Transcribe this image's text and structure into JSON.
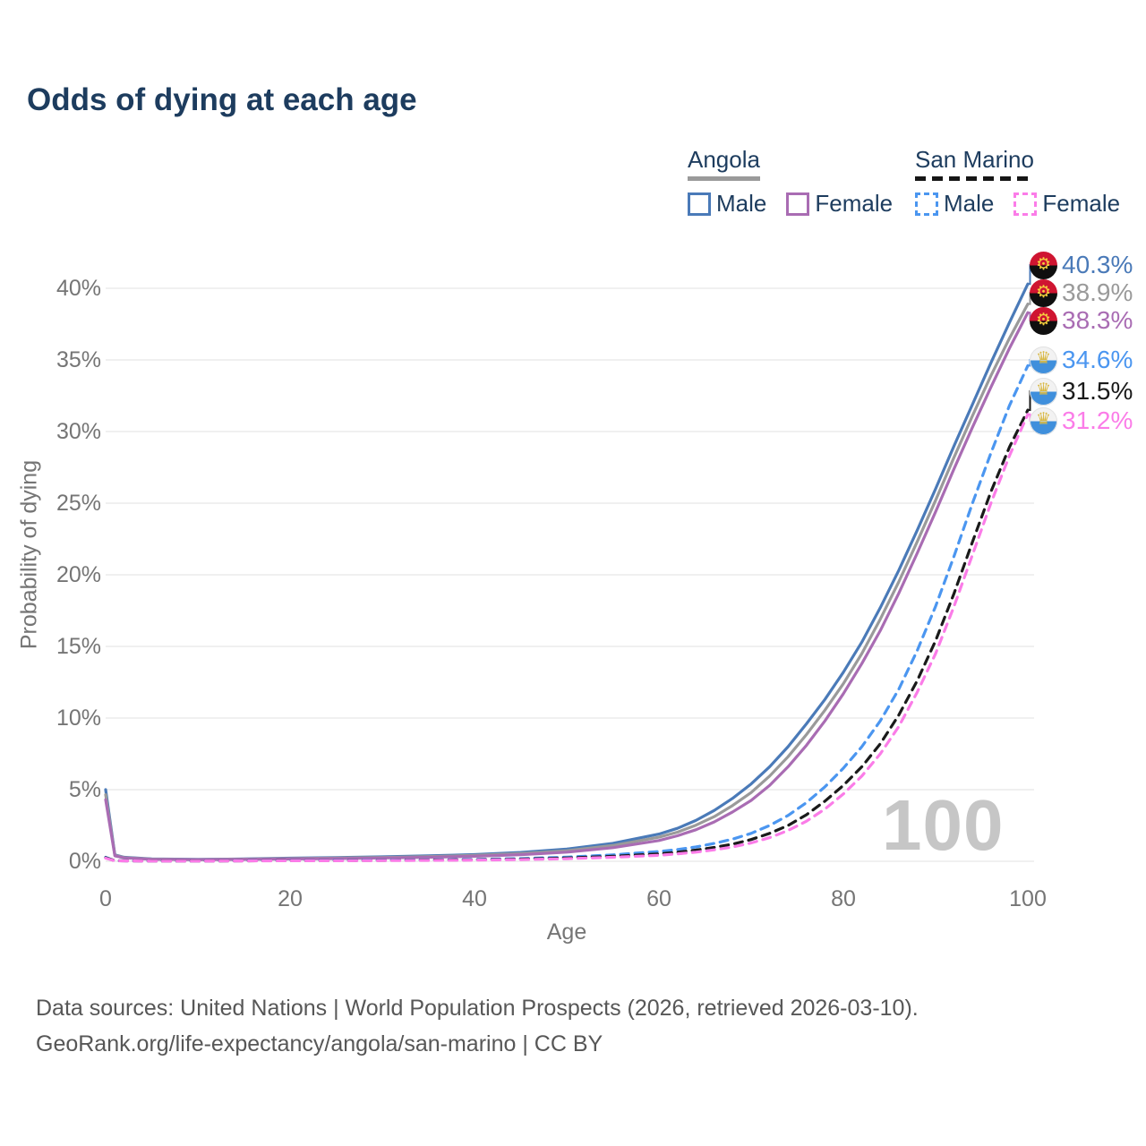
{
  "title": "Odds of dying at each age",
  "watermark": "100",
  "icons": {
    "angola_flag_emblem": "⚙",
    "san_marino_flag_emblem": "♛"
  },
  "legend": {
    "groups": [
      {
        "label": "Angola",
        "line_style": "solid",
        "items": [
          {
            "label": "Male",
            "color": "#4a7ab8"
          },
          {
            "label": "Female",
            "color": "#a96cb3"
          }
        ]
      },
      {
        "label": "San Marino",
        "line_style": "dashed",
        "items": [
          {
            "label": "Male",
            "color": "#4b96f0"
          },
          {
            "label": "Female",
            "color": "#fb7ce8"
          }
        ]
      }
    ]
  },
  "footer": {
    "line1": "Data sources: United Nations | World Population Prospects (2026, retrieved 2026-03-10).",
    "line2": "GeoRank.org/life-expectancy/angola/san-marino | CC BY"
  },
  "chart_data": {
    "type": "line",
    "title": "Odds of dying at each age",
    "xlabel": "Age",
    "ylabel": "Probability of dying",
    "xlim": [
      0,
      100
    ],
    "ylim": [
      0,
      42
    ],
    "grid": "horizontal",
    "legend_position": "top-right",
    "x_ticks": [
      0,
      20,
      40,
      60,
      80,
      100
    ],
    "y_ticks": [
      "0%",
      "5%",
      "10%",
      "15%",
      "20%",
      "25%",
      "30%",
      "35%",
      "40%"
    ],
    "y_tick_values": [
      0,
      5,
      10,
      15,
      20,
      25,
      30,
      35,
      40
    ],
    "series": [
      {
        "name": "Angola Male",
        "country": "Angola",
        "sex": "male",
        "color": "#4a7ab8",
        "dash": "solid",
        "end_label": "40.3%",
        "end_value": 40.3,
        "points": [
          [
            0,
            5.0
          ],
          [
            1,
            0.45
          ],
          [
            2,
            0.28
          ],
          [
            5,
            0.16
          ],
          [
            10,
            0.13
          ],
          [
            15,
            0.16
          ],
          [
            20,
            0.22
          ],
          [
            25,
            0.26
          ],
          [
            30,
            0.31
          ],
          [
            35,
            0.38
          ],
          [
            40,
            0.47
          ],
          [
            45,
            0.62
          ],
          [
            50,
            0.85
          ],
          [
            55,
            1.25
          ],
          [
            60,
            1.9
          ],
          [
            62,
            2.3
          ],
          [
            64,
            2.85
          ],
          [
            66,
            3.55
          ],
          [
            68,
            4.4
          ],
          [
            70,
            5.4
          ],
          [
            72,
            6.6
          ],
          [
            74,
            8.0
          ],
          [
            76,
            9.6
          ],
          [
            78,
            11.3
          ],
          [
            80,
            13.2
          ],
          [
            82,
            15.3
          ],
          [
            84,
            17.7
          ],
          [
            86,
            20.3
          ],
          [
            88,
            23.1
          ],
          [
            90,
            26.0
          ],
          [
            92,
            29.0
          ],
          [
            94,
            31.9
          ],
          [
            96,
            34.8
          ],
          [
            98,
            37.6
          ],
          [
            100,
            40.3
          ]
        ]
      },
      {
        "name": "Angola All",
        "country": "Angola",
        "sex": "all",
        "color": "#9a9a9a",
        "dash": "solid",
        "end_label": "38.9%",
        "end_value": 38.9,
        "points": [
          [
            0,
            4.65
          ],
          [
            1,
            0.42
          ],
          [
            2,
            0.26
          ],
          [
            5,
            0.15
          ],
          [
            10,
            0.12
          ],
          [
            15,
            0.15
          ],
          [
            20,
            0.19
          ],
          [
            25,
            0.23
          ],
          [
            30,
            0.27
          ],
          [
            35,
            0.33
          ],
          [
            40,
            0.41
          ],
          [
            45,
            0.54
          ],
          [
            50,
            0.74
          ],
          [
            55,
            1.1
          ],
          [
            60,
            1.68
          ],
          [
            62,
            2.03
          ],
          [
            64,
            2.52
          ],
          [
            66,
            3.12
          ],
          [
            68,
            3.9
          ],
          [
            70,
            4.8
          ],
          [
            72,
            5.95
          ],
          [
            74,
            7.3
          ],
          [
            76,
            8.85
          ],
          [
            78,
            10.55
          ],
          [
            80,
            12.4
          ],
          [
            82,
            14.5
          ],
          [
            84,
            16.9
          ],
          [
            86,
            19.5
          ],
          [
            88,
            22.3
          ],
          [
            90,
            25.2
          ],
          [
            92,
            28.2
          ],
          [
            94,
            31.1
          ],
          [
            96,
            33.9
          ],
          [
            98,
            36.5
          ],
          [
            100,
            38.9
          ]
        ]
      },
      {
        "name": "Angola Female",
        "country": "Angola",
        "sex": "female",
        "color": "#a96cb3",
        "dash": "solid",
        "end_label": "38.3%",
        "end_value": 38.3,
        "points": [
          [
            0,
            4.3
          ],
          [
            1,
            0.38
          ],
          [
            2,
            0.24
          ],
          [
            5,
            0.14
          ],
          [
            10,
            0.11
          ],
          [
            15,
            0.13
          ],
          [
            20,
            0.16
          ],
          [
            25,
            0.19
          ],
          [
            30,
            0.23
          ],
          [
            35,
            0.28
          ],
          [
            40,
            0.35
          ],
          [
            45,
            0.46
          ],
          [
            50,
            0.64
          ],
          [
            55,
            0.95
          ],
          [
            60,
            1.45
          ],
          [
            62,
            1.78
          ],
          [
            64,
            2.2
          ],
          [
            66,
            2.75
          ],
          [
            68,
            3.45
          ],
          [
            70,
            4.25
          ],
          [
            72,
            5.3
          ],
          [
            74,
            6.6
          ],
          [
            76,
            8.1
          ],
          [
            78,
            9.8
          ],
          [
            80,
            11.7
          ],
          [
            82,
            13.8
          ],
          [
            84,
            16.1
          ],
          [
            86,
            18.7
          ],
          [
            88,
            21.5
          ],
          [
            90,
            24.4
          ],
          [
            92,
            27.4
          ],
          [
            94,
            30.3
          ],
          [
            96,
            33.1
          ],
          [
            98,
            35.8
          ],
          [
            100,
            38.3
          ]
        ]
      },
      {
        "name": "San Marino Male",
        "country": "San Marino",
        "sex": "male",
        "color": "#4b96f0",
        "dash": "dashed",
        "end_label": "34.6%",
        "end_value": 34.6,
        "points": [
          [
            0,
            0.28
          ],
          [
            1,
            0.04
          ],
          [
            5,
            0.02
          ],
          [
            10,
            0.02
          ],
          [
            15,
            0.04
          ],
          [
            20,
            0.06
          ],
          [
            25,
            0.07
          ],
          [
            30,
            0.08
          ],
          [
            35,
            0.1
          ],
          [
            40,
            0.13
          ],
          [
            45,
            0.19
          ],
          [
            50,
            0.29
          ],
          [
            55,
            0.45
          ],
          [
            60,
            0.68
          ],
          [
            62,
            0.82
          ],
          [
            64,
            1.0
          ],
          [
            66,
            1.25
          ],
          [
            68,
            1.55
          ],
          [
            70,
            1.95
          ],
          [
            72,
            2.5
          ],
          [
            74,
            3.2
          ],
          [
            76,
            4.1
          ],
          [
            78,
            5.2
          ],
          [
            80,
            6.5
          ],
          [
            82,
            8.0
          ],
          [
            84,
            9.8
          ],
          [
            86,
            12.0
          ],
          [
            88,
            14.7
          ],
          [
            90,
            17.8
          ],
          [
            92,
            21.3
          ],
          [
            94,
            25.0
          ],
          [
            96,
            28.5
          ],
          [
            98,
            31.8
          ],
          [
            100,
            34.6
          ]
        ]
      },
      {
        "name": "San Marino All",
        "country": "San Marino",
        "sex": "all",
        "color": "#1a1a1a",
        "dash": "dashed",
        "end_label": "31.5%",
        "end_value": 31.5,
        "points": [
          [
            0,
            0.25
          ],
          [
            1,
            0.035
          ],
          [
            5,
            0.02
          ],
          [
            10,
            0.02
          ],
          [
            15,
            0.03
          ],
          [
            20,
            0.05
          ],
          [
            25,
            0.05
          ],
          [
            30,
            0.06
          ],
          [
            35,
            0.08
          ],
          [
            40,
            0.1
          ],
          [
            45,
            0.15
          ],
          [
            50,
            0.23
          ],
          [
            55,
            0.35
          ],
          [
            60,
            0.52
          ],
          [
            62,
            0.63
          ],
          [
            64,
            0.78
          ],
          [
            66,
            0.97
          ],
          [
            68,
            1.2
          ],
          [
            70,
            1.52
          ],
          [
            72,
            1.95
          ],
          [
            74,
            2.5
          ],
          [
            76,
            3.25
          ],
          [
            78,
            4.2
          ],
          [
            80,
            5.3
          ],
          [
            82,
            6.6
          ],
          [
            84,
            8.2
          ],
          [
            86,
            10.2
          ],
          [
            88,
            12.6
          ],
          [
            90,
            15.4
          ],
          [
            92,
            18.7
          ],
          [
            94,
            22.3
          ],
          [
            96,
            25.8
          ],
          [
            98,
            28.9
          ],
          [
            100,
            31.5
          ]
        ]
      },
      {
        "name": "San Marino Female",
        "country": "San Marino",
        "sex": "female",
        "color": "#fb7ce8",
        "dash": "dashed",
        "end_label": "31.2%",
        "end_value": 31.2,
        "points": [
          [
            0,
            0.22
          ],
          [
            1,
            0.03
          ],
          [
            5,
            0.015
          ],
          [
            10,
            0.015
          ],
          [
            15,
            0.025
          ],
          [
            20,
            0.04
          ],
          [
            25,
            0.04
          ],
          [
            30,
            0.05
          ],
          [
            35,
            0.06
          ],
          [
            40,
            0.08
          ],
          [
            45,
            0.12
          ],
          [
            50,
            0.18
          ],
          [
            55,
            0.28
          ],
          [
            60,
            0.42
          ],
          [
            62,
            0.52
          ],
          [
            64,
            0.64
          ],
          [
            66,
            0.8
          ],
          [
            68,
            1.0
          ],
          [
            70,
            1.28
          ],
          [
            72,
            1.65
          ],
          [
            74,
            2.15
          ],
          [
            76,
            2.8
          ],
          [
            78,
            3.65
          ],
          [
            80,
            4.7
          ],
          [
            82,
            5.95
          ],
          [
            84,
            7.5
          ],
          [
            86,
            9.4
          ],
          [
            88,
            11.8
          ],
          [
            90,
            14.5
          ],
          [
            92,
            17.8
          ],
          [
            94,
            21.4
          ],
          [
            96,
            25.0
          ],
          [
            98,
            28.3
          ],
          [
            100,
            31.2
          ]
        ]
      }
    ]
  }
}
